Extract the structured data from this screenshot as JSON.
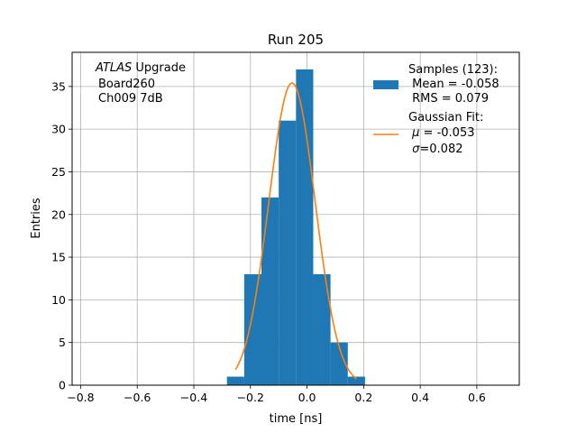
{
  "chart_data": {
    "type": "bar",
    "title": "Run 205",
    "xlabel": "time [ns]",
    "ylabel": "Entries",
    "xlim": [
      -0.83,
      0.75
    ],
    "ylim": [
      0,
      39
    ],
    "grid": true,
    "x_ticks": [
      -0.8,
      -0.6,
      -0.4,
      -0.2,
      0.0,
      0.2,
      0.4,
      0.6
    ],
    "x_tick_labels": [
      "−0.8",
      "−0.6",
      "−0.4",
      "−0.2",
      "0.0",
      "0.2",
      "0.4",
      "0.6"
    ],
    "y_ticks": [
      0,
      5,
      10,
      15,
      20,
      25,
      30,
      35
    ],
    "y_tick_labels": [
      "0",
      "5",
      "10",
      "15",
      "20",
      "25",
      "30",
      "35"
    ],
    "annotation": {
      "line1_italic": "ATLAS",
      "line1_rest": " Upgrade",
      "line2": "Board260",
      "line3": "Ch009 7dB"
    },
    "histogram": {
      "name": "Samples (123):",
      "color": "#1f77b4",
      "bin_edges": [
        -0.283,
        -0.222,
        -0.161,
        -0.1,
        -0.039,
        0.022,
        0.083,
        0.144,
        0.205
      ],
      "counts": [
        1,
        13,
        22,
        31,
        37,
        13,
        5,
        1
      ]
    },
    "fit": {
      "name": "Gaussian Fit:",
      "color": "#ff7f0e",
      "mu": -0.053,
      "sigma": 0.082,
      "amplitude": 35.4,
      "x_range": [
        -0.253,
        0.175
      ]
    },
    "legend": {
      "position": "top-right",
      "hist_lines": [
        "Samples (123):",
        " Mean = -0.058",
        " RMS = 0.079"
      ],
      "fit_lines": [
        "Gaussian Fit:",
        " = -0.053",
        "=0.082"
      ],
      "mu_symbol": "μ",
      "sigma_symbol": "σ"
    }
  }
}
